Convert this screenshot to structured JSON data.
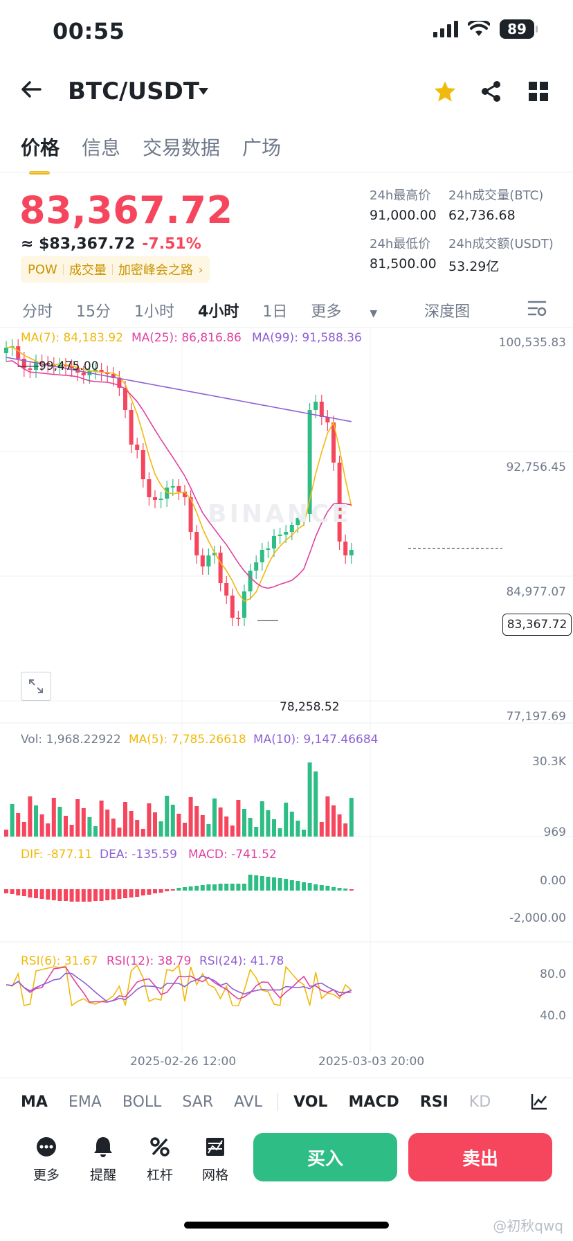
{
  "status_bar": {
    "time": "00:55",
    "battery": "89"
  },
  "header": {
    "pair": "BTC/USDT"
  },
  "tabs": [
    {
      "label": "价格",
      "active": true
    },
    {
      "label": "信息",
      "active": false
    },
    {
      "label": "交易数据",
      "active": false
    },
    {
      "label": "广场",
      "active": false
    }
  ],
  "ticker": {
    "last_price": "83,367.72",
    "usd_price": "≈ $83,367.72",
    "change_pct": "-7.51%",
    "tags": [
      "POW",
      "成交量",
      "加密峰会之路"
    ],
    "stats": {
      "high_label": "24h最高价",
      "high": "91,000.00",
      "vol_btc_label": "24h成交量(BTC)",
      "vol_btc": "62,736.68",
      "low_label": "24h最低价",
      "low": "81,500.00",
      "vol_usdt_label": "24h成交额(USDT)",
      "vol_usdt": "53.29亿"
    }
  },
  "intervals": [
    "分时",
    "15分",
    "1小时",
    "4小时",
    "1日",
    "更多",
    "深度图"
  ],
  "active_interval": "4小时",
  "main_chart": {
    "ma7": "MA(7): 84,183.92",
    "ma25": "MA(25): 86,816.86",
    "ma99": "MA(99): 91,588.36",
    "y_ticks": [
      "100,535.83",
      "92,756.45",
      "84,977.07",
      "77,197.69"
    ],
    "high_marker": "99,475.00",
    "low_marker": "78,258.52",
    "last_label": "83,367.72",
    "watermark": "BINANCE"
  },
  "vol_chart": {
    "vol": "Vol: 1,968.22922",
    "ma5": "MA(5): 7,785.26618",
    "ma10": "MA(10): 9,147.46684",
    "y_ticks": [
      "30.3K",
      "969"
    ]
  },
  "macd_chart": {
    "dif": "DIF: -877.11",
    "dea": "DEA: -135.59",
    "macd": "MACD: -741.52",
    "y_ticks": [
      "0.00",
      "-2,000.00"
    ]
  },
  "rsi_chart": {
    "rsi6": "RSI(6): 31.67",
    "rsi12": "RSI(12): 38.79",
    "rsi24": "RSI(24): 41.78",
    "y_ticks": [
      "80.0",
      "40.0"
    ]
  },
  "x_labels": [
    "2025-02-26 12:00",
    "2025-03-03 20:00"
  ],
  "indicator_tabs": [
    "MA",
    "EMA",
    "BOLL",
    "SAR",
    "AVL",
    "VOL",
    "MACD",
    "RSI",
    "KD"
  ],
  "bottom_nav": [
    {
      "label": "更多",
      "icon": "more-dots-icon"
    },
    {
      "label": "提醒",
      "icon": "bell-icon"
    },
    {
      "label": "杠杆",
      "icon": "percent-icon"
    },
    {
      "label": "网格",
      "icon": "grid-chart-icon"
    }
  ],
  "buy_label": "买入",
  "sell_label": "卖出",
  "corner_watermark": "@初秋qwq",
  "colors": {
    "up": "#2ebd85",
    "down": "#f6465d",
    "accent": "#f0b90b",
    "ma7": "#f0b90b",
    "ma25": "#e040a0",
    "ma99": "#8e5fd4"
  }
}
